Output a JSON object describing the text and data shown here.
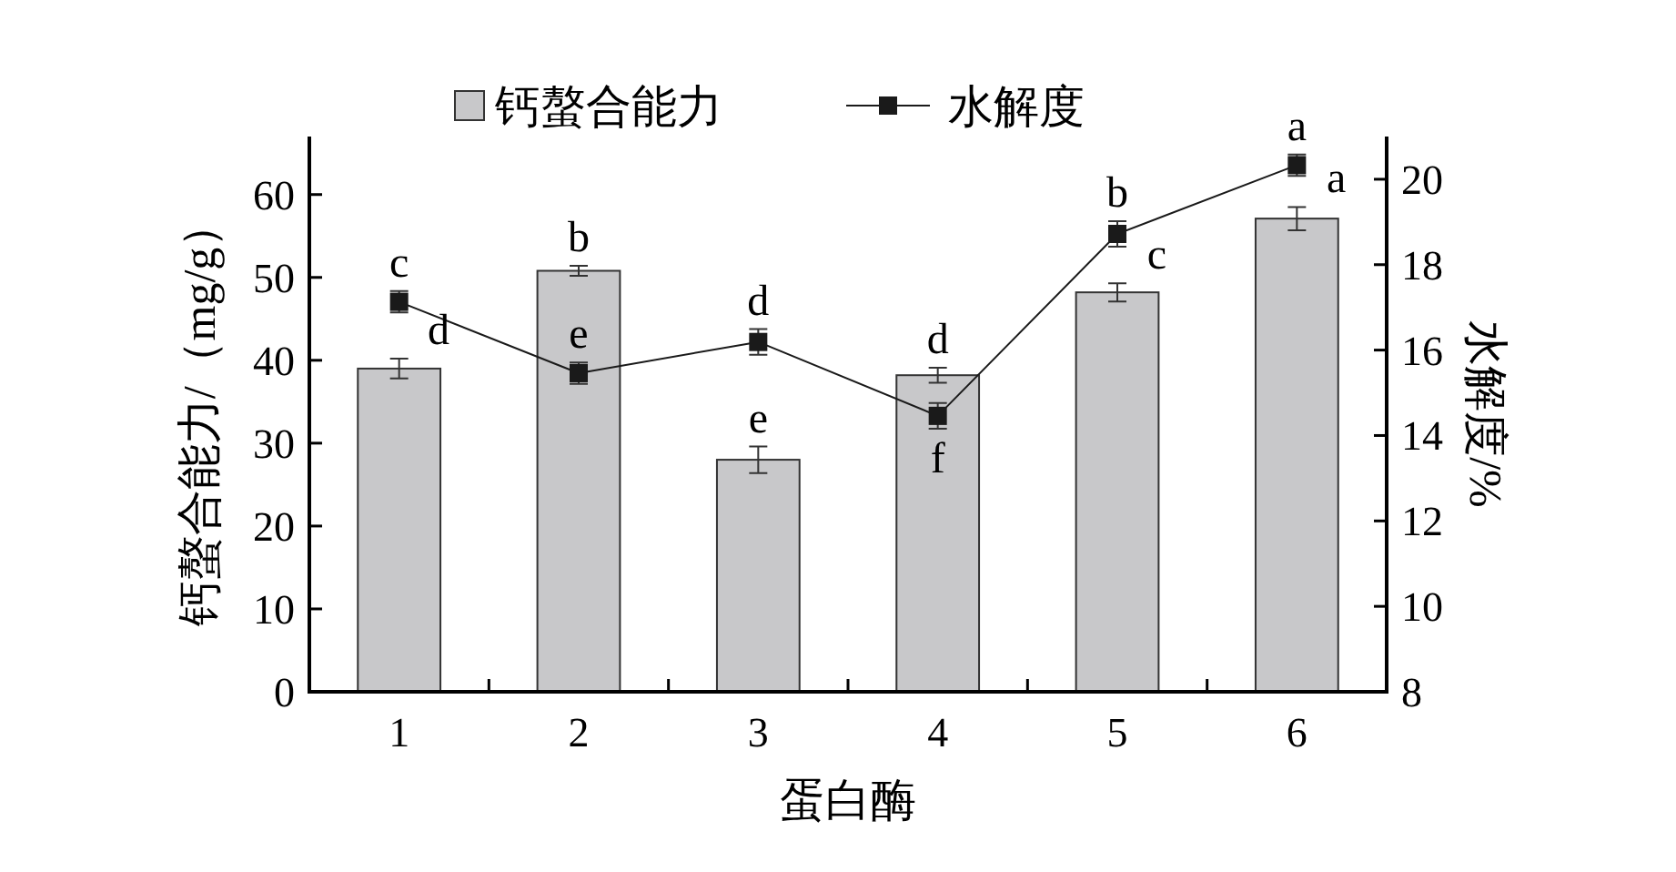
{
  "chart_data": {
    "type": "bar",
    "xlabel": "蛋白酶",
    "ylabel": "钙螯合能力/（mg/g）",
    "y2label": "水解度/%",
    "categories": [
      "1",
      "2",
      "3",
      "4",
      "5",
      "6"
    ],
    "series": [
      {
        "name": "钙螯合能力",
        "color": "#c8c8ca",
        "values": [
          39.0,
          50.8,
          28.0,
          38.2,
          48.2,
          57.1
        ],
        "errors": [
          1.2,
          0.6,
          1.6,
          0.9,
          1.1,
          1.4
        ],
        "value_labels": [
          "d",
          "b",
          "e",
          "d",
          "c",
          "a"
        ]
      },
      {
        "name": "水解度",
        "type": "line",
        "axis": "y2",
        "color": "#1a1a1a",
        "values": [
          17.13,
          15.46,
          16.19,
          14.46,
          18.72,
          20.33
        ],
        "errors": [
          0.25,
          0.25,
          0.3,
          0.3,
          0.3,
          0.25
        ],
        "value_labels": [
          "c",
          "e",
          "d",
          "f",
          "b",
          "a"
        ]
      }
    ],
    "ylim": [
      0,
      67
    ],
    "yticks": [
      0,
      10,
      20,
      30,
      40,
      50,
      60
    ],
    "y2lim": [
      8,
      21
    ],
    "y2ticks": [
      8,
      10,
      12,
      14,
      16,
      18,
      20
    ],
    "legend": "top",
    "grid": false,
    "marker": "square",
    "line_style": "solid"
  }
}
